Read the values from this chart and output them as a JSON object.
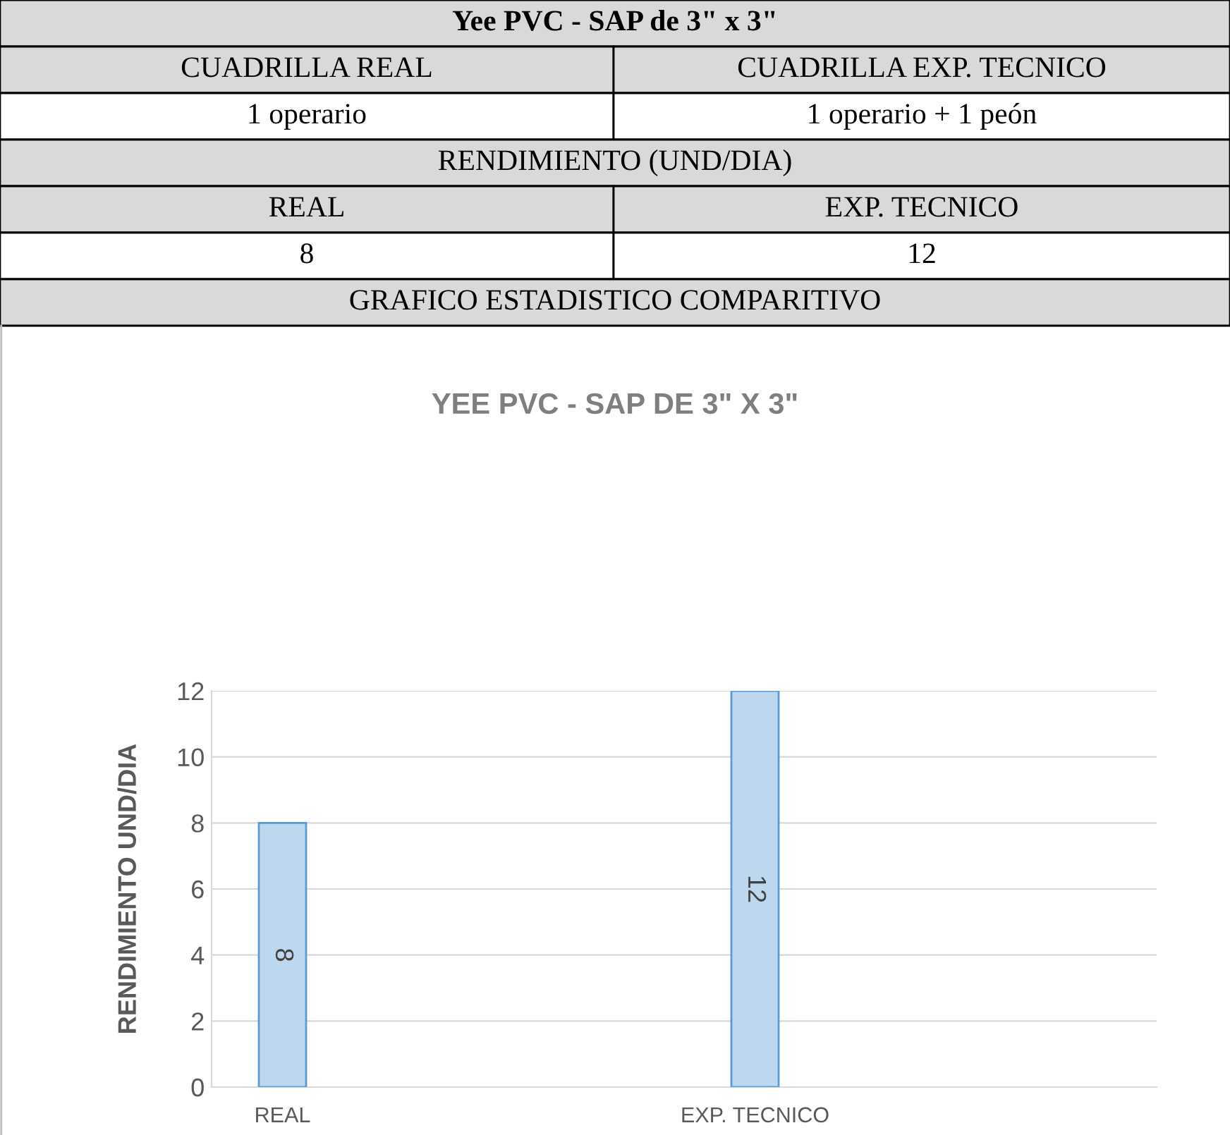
{
  "chart_data": {
    "type": "bar",
    "title": "YEE PVC - SAP DE 3\" X 3\"",
    "ylabel": "RENDIMIENTO UND/DIA",
    "categories": [
      "REAL",
      "EXP. TECNICO"
    ],
    "values": [
      8,
      12
    ],
    "color": "#bdd7ee",
    "data_labels": true,
    "ylim": [
      0,
      12
    ],
    "yticks": [
      0,
      2,
      4,
      6,
      8,
      10,
      12
    ],
    "grid": "y",
    "annotations": [
      "Yee PVC - SAP de 3\" x 3\"",
      "CUADRILLA REAL",
      "CUADRILLA EXP. TECNICO",
      "1 operario",
      "1 operario + 1 peón",
      "RENDIMIENTO (UND/DIA)",
      "REAL",
      "EXP. TECNICO",
      "8",
      "12",
      "GRAFICO ESTADISTICO COMPARITIVO"
    ]
  }
}
